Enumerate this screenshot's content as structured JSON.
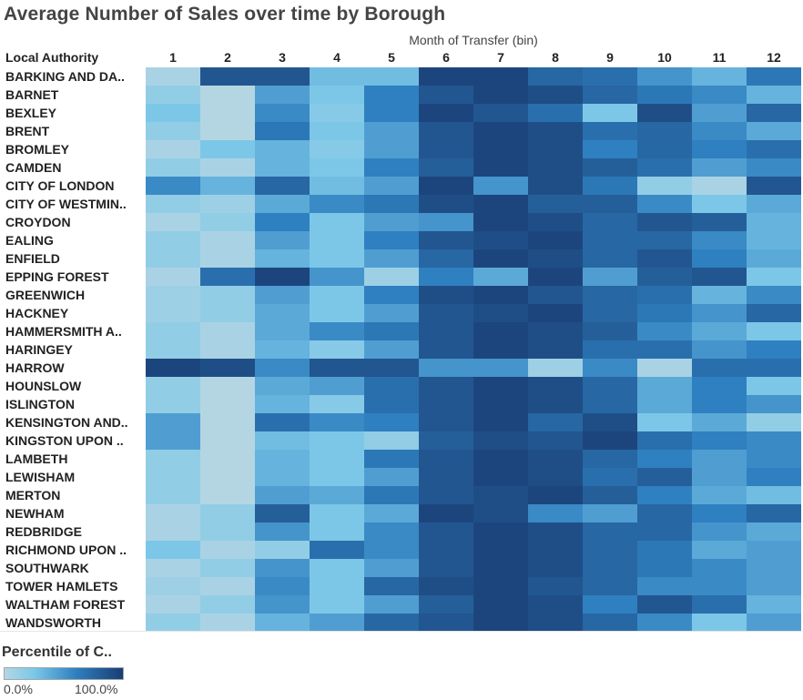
{
  "chart_data": {
    "type": "heatmap",
    "title": "Average Number of Sales over time by Borough",
    "xlabel": "Month of Transfer (bin)",
    "row_header": "Local Authority",
    "columns": [
      "1",
      "2",
      "3",
      "4",
      "5",
      "6",
      "7",
      "8",
      "9",
      "10",
      "11",
      "12"
    ],
    "rows": [
      "BARKING AND DA..",
      "BARNET",
      "BEXLEY",
      "BRENT",
      "BROMLEY",
      "CAMDEN",
      "CITY OF LONDON",
      "CITY OF WESTMIN..",
      "CROYDON",
      "EALING",
      "ENFIELD",
      "EPPING FOREST",
      "GREENWICH",
      "HACKNEY",
      "HAMMERSMITH A..",
      "HARINGEY",
      "HARROW",
      "HOUNSLOW",
      "ISLINGTON",
      "KENSINGTON AND..",
      "KINGSTON UPON ..",
      "LAMBETH",
      "LEWISHAM",
      "MERTON",
      "NEWHAM",
      "REDBRIDGE",
      "RICHMOND UPON ..",
      "SOUTHWARK",
      "TOWER HAMLETS",
      "WALTHAM FOREST",
      "WANDSWORTH"
    ],
    "values_pct": [
      [
        5,
        85,
        85,
        30,
        30,
        95,
        95,
        75,
        70,
        50,
        35,
        65
      ],
      [
        15,
        0,
        45,
        25,
        60,
        85,
        95,
        90,
        75,
        65,
        55,
        35
      ],
      [
        25,
        0,
        55,
        20,
        60,
        95,
        85,
        70,
        25,
        90,
        45,
        75
      ],
      [
        15,
        0,
        65,
        25,
        45,
        85,
        95,
        90,
        70,
        75,
        55,
        40
      ],
      [
        5,
        25,
        35,
        20,
        45,
        85,
        95,
        90,
        60,
        75,
        60,
        70
      ],
      [
        15,
        5,
        35,
        25,
        60,
        80,
        95,
        90,
        80,
        70,
        45,
        55
      ],
      [
        55,
        35,
        75,
        30,
        45,
        95,
        50,
        90,
        65,
        15,
        5,
        85
      ],
      [
        15,
        10,
        40,
        55,
        65,
        90,
        95,
        80,
        80,
        55,
        25,
        40
      ],
      [
        5,
        15,
        60,
        25,
        45,
        50,
        95,
        90,
        75,
        85,
        80,
        35
      ],
      [
        15,
        5,
        45,
        25,
        60,
        85,
        90,
        95,
        75,
        75,
        55,
        35
      ],
      [
        15,
        5,
        35,
        25,
        45,
        75,
        95,
        90,
        75,
        85,
        60,
        40
      ],
      [
        5,
        70,
        95,
        50,
        10,
        60,
        40,
        95,
        45,
        80,
        85,
        25
      ],
      [
        10,
        15,
        45,
        25,
        60,
        90,
        95,
        85,
        75,
        70,
        35,
        55
      ],
      [
        10,
        15,
        40,
        25,
        45,
        85,
        90,
        95,
        75,
        65,
        50,
        75
      ],
      [
        15,
        5,
        40,
        55,
        65,
        85,
        95,
        90,
        80,
        55,
        40,
        25
      ],
      [
        15,
        5,
        35,
        20,
        45,
        85,
        95,
        90,
        70,
        70,
        50,
        60
      ],
      [
        95,
        90,
        55,
        85,
        85,
        50,
        50,
        10,
        55,
        5,
        70,
        70
      ],
      [
        15,
        0,
        40,
        45,
        70,
        85,
        95,
        90,
        75,
        40,
        60,
        25
      ],
      [
        15,
        0,
        35,
        20,
        70,
        85,
        95,
        90,
        75,
        40,
        60,
        50
      ],
      [
        45,
        0,
        70,
        55,
        60,
        85,
        95,
        75,
        90,
        25,
        40,
        15
      ],
      [
        45,
        0,
        30,
        25,
        15,
        80,
        90,
        85,
        95,
        70,
        60,
        55
      ],
      [
        15,
        0,
        35,
        25,
        65,
        85,
        95,
        90,
        75,
        60,
        45,
        55
      ],
      [
        15,
        0,
        35,
        25,
        45,
        85,
        95,
        90,
        70,
        80,
        45,
        60
      ],
      [
        15,
        0,
        45,
        40,
        65,
        85,
        90,
        95,
        80,
        60,
        40,
        30
      ],
      [
        5,
        15,
        80,
        25,
        40,
        95,
        90,
        55,
        45,
        75,
        60,
        75
      ],
      [
        5,
        15,
        50,
        25,
        55,
        85,
        95,
        90,
        75,
        75,
        50,
        40
      ],
      [
        25,
        5,
        15,
        70,
        55,
        85,
        95,
        90,
        75,
        65,
        40,
        45
      ],
      [
        5,
        15,
        50,
        25,
        45,
        85,
        95,
        90,
        75,
        65,
        55,
        45
      ],
      [
        10,
        5,
        55,
        25,
        75,
        90,
        95,
        85,
        75,
        55,
        55,
        45
      ],
      [
        5,
        15,
        50,
        25,
        45,
        80,
        95,
        90,
        60,
        85,
        70,
        35
      ],
      [
        15,
        5,
        35,
        45,
        75,
        85,
        95,
        90,
        75,
        55,
        25,
        45
      ]
    ],
    "legend": {
      "title": "Percentile of C..",
      "min_label": "0.0%",
      "max_label": "100.0%",
      "colors": [
        "#b4d6e3",
        "#7cc7e8",
        "#2f80c0",
        "#1a3d73"
      ]
    }
  }
}
